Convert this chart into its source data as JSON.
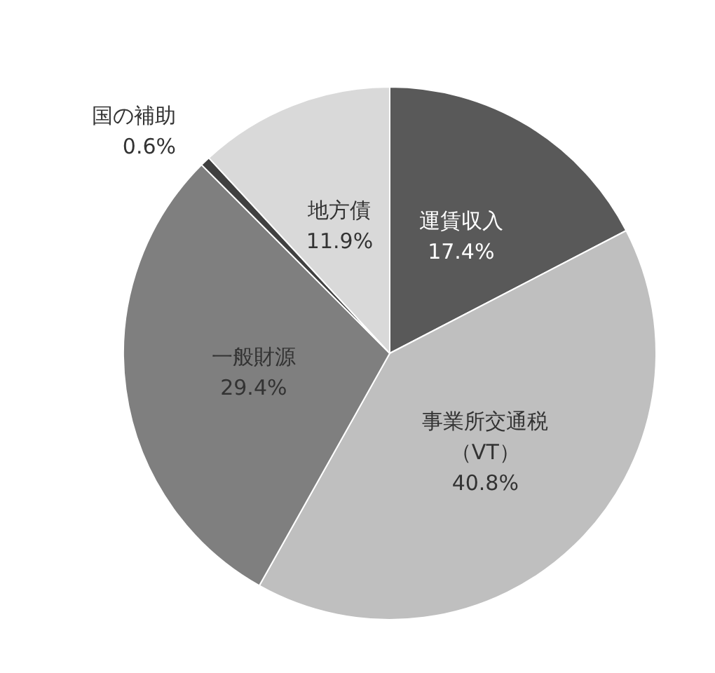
{
  "chart_data": {
    "type": "pie",
    "categories": [
      "運賃収入",
      "事業所交通税（VT）",
      "一般財源",
      "国の補助",
      "地方債"
    ],
    "values": [
      17.4,
      40.8,
      29.4,
      0.6,
      11.9
    ],
    "value_labels": [
      "17.4%",
      "40.8%",
      "29.4%",
      "0.6%",
      "11.9%"
    ],
    "colors": [
      "#595959",
      "#bfbfbf",
      "#7f7f7f",
      "#404040",
      "#d9d9d9"
    ],
    "legend": false
  }
}
